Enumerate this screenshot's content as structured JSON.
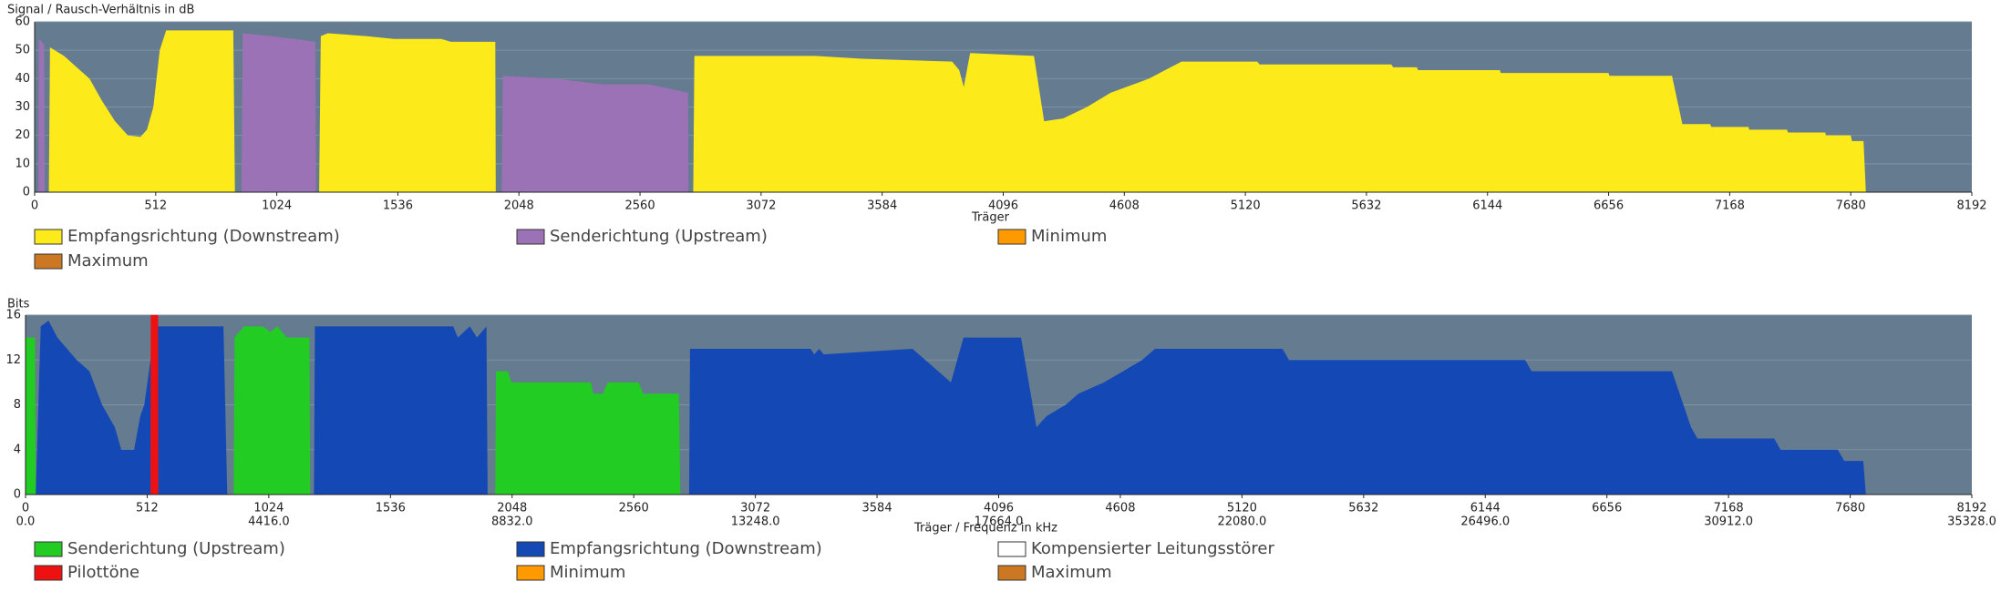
{
  "chart_data": [
    {
      "type": "area",
      "title": "Signal / Rausch-Verhältnis in dB",
      "xlabel": "Träger",
      "xlim": [
        0,
        8192
      ],
      "xticks": [
        0,
        512,
        1024,
        1536,
        2048,
        2560,
        3072,
        3584,
        4096,
        4608,
        5120,
        5632,
        6144,
        6656,
        7168,
        7680,
        8192
      ],
      "ylim": [
        0,
        60
      ],
      "yticks": [
        0,
        10,
        20,
        30,
        40,
        50,
        60
      ],
      "grid": true,
      "series": [
        {
          "name": "Empfangsrichtung (Downstream)",
          "color": "#fdea1a",
          "x": [
            60,
            65,
            124,
            178,
            232,
            286,
            340,
            394,
            448,
            475,
            502,
            529,
            556,
            840,
            847,
            1000,
            1203,
            1210,
            1240,
            1400,
            1520,
            1720,
            1760,
            1948,
            1950,
            2300,
            2785,
            2790,
            3300,
            3500,
            3880,
            3910,
            3929,
            3956,
            4226,
            4269,
            4350,
            4450,
            4550,
            4712,
            4850,
            5170,
            5180,
            5737,
            5745,
            5845,
            5850,
            6196,
            6200,
            6655,
            6660,
            6924,
            6968,
            7086,
            7090,
            7248,
            7250,
            7410,
            7415,
            7572,
            7575,
            7680,
            7685,
            7734,
            7744
          ],
          "values": [
            0,
            51,
            48,
            44,
            40,
            32,
            25,
            20,
            19.5,
            22,
            30,
            50,
            57,
            57,
            0,
            null,
            0,
            55,
            56,
            55,
            54,
            54,
            53,
            53,
            0,
            null,
            0,
            48,
            48,
            47,
            46,
            43,
            37,
            49,
            48,
            25,
            26,
            30,
            35,
            40,
            46,
            46,
            45,
            45,
            44,
            44,
            43,
            43,
            42,
            42,
            41,
            41,
            24,
            24,
            23,
            23,
            22,
            22,
            21,
            21,
            20,
            20,
            18,
            18,
            0
          ]
        },
        {
          "name": "Senderichtung (Upstream)",
          "color": "#9b72b5",
          "x": [
            16,
            18,
            40,
            43,
            400,
            874,
            880,
            1000,
            1100,
            1187,
            1190,
            1600,
            1975,
            1980,
            2200,
            2400,
            2600,
            2763,
            2765
          ],
          "values": [
            0,
            54,
            52,
            0,
            null,
            0,
            56,
            55,
            54,
            53,
            0,
            null,
            0,
            41,
            40,
            38,
            38,
            35,
            0
          ]
        },
        {
          "name": "Minimum",
          "color": "#ff9900",
          "x": [],
          "values": []
        },
        {
          "name": "Maximum",
          "color": "#cc7722",
          "x": [],
          "values": []
        }
      ]
    },
    {
      "type": "area",
      "title": "Bits",
      "xlabel": "Träger / Frequenz in kHz",
      "xlim": [
        0,
        8192
      ],
      "xticks": [
        0,
        512,
        1024,
        1536,
        2048,
        2560,
        3072,
        3584,
        4096,
        4608,
        5120,
        5632,
        6144,
        6656,
        7168,
        7680,
        8192
      ],
      "x2ticks": [
        {
          "value": 0,
          "label": "0.0"
        },
        {
          "value": 1024,
          "label": "4416.0"
        },
        {
          "value": 2048,
          "label": "8832.0"
        },
        {
          "value": 3072,
          "label": "13248.0"
        },
        {
          "value": 4096,
          "label": "17664.0"
        },
        {
          "value": 5120,
          "label": "22080.0"
        },
        {
          "value": 6144,
          "label": "26496.0"
        },
        {
          "value": 7168,
          "label": "30912.0"
        },
        {
          "value": 8192,
          "label": "35328.0"
        }
      ],
      "ylim": [
        0,
        16
      ],
      "yticks": [
        0,
        4,
        8,
        12,
        16
      ],
      "grid": true,
      "series": [
        {
          "name": "Senderichtung (Upstream)",
          "color": "#22cc22",
          "x": [
            0,
            2,
            40,
            43,
            400,
            876,
            880,
            920,
            1000,
            1030,
            1060,
            1100,
            1195,
            1198,
            1600,
            1977,
            1980,
            2030,
            2045,
            2380,
            2390,
            2430,
            2450,
            2580,
            2600,
            2750,
            2756
          ],
          "values": [
            0,
            14,
            14,
            0,
            null,
            0,
            14,
            15,
            15,
            14.5,
            15,
            14,
            14,
            0,
            null,
            0,
            11,
            11,
            10,
            10,
            9,
            9,
            10,
            10,
            9,
            9,
            0
          ]
        },
        {
          "name": "Empfangsrichtung (Downstream)",
          "color": "#1448b4",
          "x": [
            43,
            64,
            97,
            134,
            215,
            269,
            322,
            376,
            403,
            457,
            483,
            500,
            526,
            548,
            564,
            833,
            849,
            1000,
            1214,
            1218,
            1800,
            1820,
            1870,
            1900,
            1940,
            1945,
            2300,
            2793,
            2797,
            3304,
            3320,
            3340,
            3360,
            3733,
            3895,
            3948,
            4190,
            4255,
            4298,
            4378,
            4432,
            4539,
            4620,
            4700,
            4754,
            5291,
            5318,
            6312,
            6339,
            6930,
            7010,
            7037,
            7360,
            7387,
            7628,
            7655,
            7735,
            7746
          ],
          "values": [
            0,
            15,
            15.5,
            14,
            12,
            11,
            8,
            6,
            4,
            4,
            7,
            8,
            12,
            15,
            15,
            15,
            0,
            null,
            0,
            15,
            15,
            14,
            15,
            14,
            15,
            0,
            null,
            0,
            13,
            13,
            12.5,
            13,
            12.5,
            13,
            10,
            14,
            14,
            6,
            7,
            8,
            9,
            10,
            11,
            12,
            13,
            13,
            12,
            12,
            11,
            11,
            6,
            5,
            5,
            4,
            4,
            3,
            3,
            0
          ]
        },
        {
          "name": "Kompensierter Leitungsstörer",
          "color": "#ffffff",
          "x": [],
          "values": []
        },
        {
          "name": "Pilottöne",
          "color": "#ee1111",
          "x": [
            526,
            527,
            558,
            559
          ],
          "values": [
            0,
            16,
            16,
            0
          ]
        },
        {
          "name": "Minimum",
          "color": "#ff9900",
          "x": [],
          "values": []
        },
        {
          "name": "Maximum",
          "color": "#cc7722",
          "x": [],
          "values": []
        }
      ]
    }
  ]
}
